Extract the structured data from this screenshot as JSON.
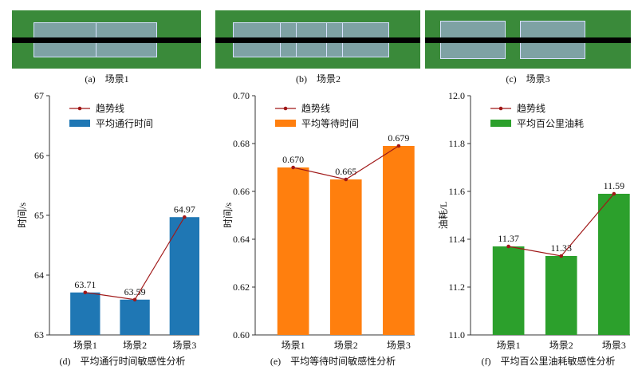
{
  "scenes": [
    {
      "caption": "(a)　场景1"
    },
    {
      "caption": "(b)　场景2"
    },
    {
      "caption": "(c)　场景3"
    }
  ],
  "chart_data": [
    {
      "type": "bar",
      "title": "(d)　平均通行时间敏感性分析",
      "ylabel": "时间/s",
      "categories": [
        "场景1",
        "场景2",
        "场景3"
      ],
      "values": [
        63.71,
        63.59,
        64.97
      ],
      "value_labels": [
        "63.71",
        "63.59",
        "64.97"
      ],
      "ylim": [
        63,
        67
      ],
      "yticks": [
        "63",
        "64",
        "65",
        "66",
        "67"
      ],
      "ytick_values": [
        63,
        64,
        65,
        66,
        67
      ],
      "legend": [
        "趋势线",
        "平均通行时间"
      ],
      "legend_placement": "top-left",
      "bar_color": "#1f77b4"
    },
    {
      "type": "bar",
      "title": "(e)　平均等待时间敏感性分析",
      "ylabel": "时间/s",
      "categories": [
        "场景1",
        "场景2",
        "场景3"
      ],
      "values": [
        0.67,
        0.665,
        0.679
      ],
      "value_labels": [
        "0.670",
        "0.665",
        "0.679"
      ],
      "ylim": [
        0.6,
        0.7
      ],
      "yticks": [
        "0.60",
        "0.62",
        "0.64",
        "0.66",
        "0.68",
        "0.70"
      ],
      "ytick_values": [
        0.6,
        0.62,
        0.64,
        0.66,
        0.68,
        0.7
      ],
      "legend": [
        "趋势线",
        "平均等待时间"
      ],
      "legend_placement": "top-left",
      "bar_color": "#ff7f0e"
    },
    {
      "type": "bar",
      "title": "(f)　平均百公里油耗敏感性分析",
      "ylabel": "油耗/L",
      "categories": [
        "场景1",
        "场景2",
        "场景3"
      ],
      "values": [
        11.37,
        11.33,
        11.59
      ],
      "value_labels": [
        "11.37",
        "11.33",
        "11.59"
      ],
      "ylim": [
        11.0,
        12.0
      ],
      "yticks": [
        "11.0",
        "11.2",
        "11.4",
        "11.6",
        "11.8",
        "12.0"
      ],
      "ytick_values": [
        11.0,
        11.2,
        11.4,
        11.6,
        11.8,
        12.0
      ],
      "legend": [
        "趋势线",
        "平均百公里油耗"
      ],
      "legend_placement": "top-left",
      "bar_color": "#2ca02c"
    }
  ],
  "trend_color": "#a01818"
}
